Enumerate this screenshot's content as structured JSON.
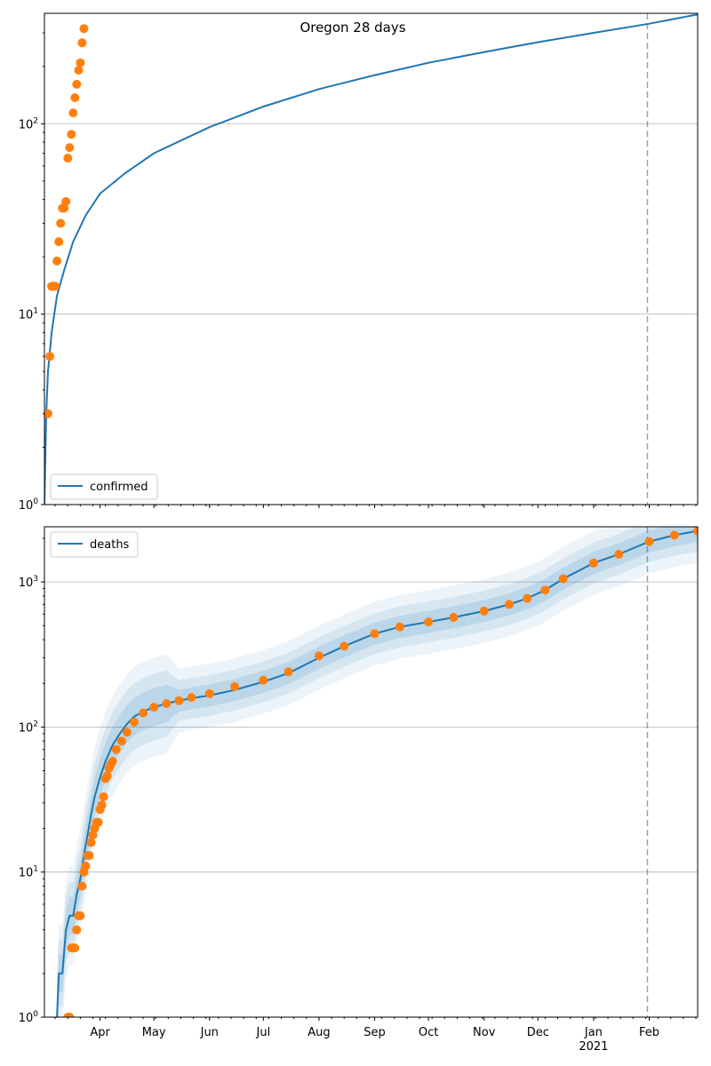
{
  "colors": {
    "model": "#1f77b4",
    "observed": "#ff7f0e",
    "grid": "#b0b0b0",
    "band": "#1f77b4"
  },
  "chart_data": [
    {
      "type": "line",
      "title": "Oregon 28 days",
      "yscale": "log",
      "ylim": [
        1,
        380
      ],
      "xlim": [
        "2020-03-01",
        "2021-02-28"
      ],
      "grid": "y-major",
      "legend": "bottom-left",
      "ytick_labels": [
        "10^0",
        "10^1",
        "10^2"
      ],
      "vline": "2021-01-31",
      "series": [
        {
          "name": "confirmed",
          "kind": "line",
          "x": [
            "2020-03-01",
            "2020-03-02",
            "2020-03-03",
            "2020-03-05",
            "2020-03-08",
            "2020-03-12",
            "2020-03-17",
            "2020-03-24",
            "2020-04-01",
            "2020-04-15",
            "2020-05-01",
            "2020-06-01",
            "2020-07-01",
            "2020-08-01",
            "2020-09-01",
            "2020-10-01",
            "2020-11-01",
            "2020-12-01",
            "2021-01-01",
            "2021-02-01",
            "2021-02-28"
          ],
          "y": [
            1,
            3,
            5,
            8,
            12.5,
            17,
            24,
            33,
            43,
            55,
            70,
            96,
            123,
            152,
            180,
            209,
            238,
            268,
            300,
            335,
            375
          ]
        },
        {
          "name": "",
          "kind": "scatter",
          "x": [
            "2020-03-03",
            "2020-03-04",
            "2020-03-05",
            "2020-03-06",
            "2020-03-07",
            "2020-03-08",
            "2020-03-09",
            "2020-03-10",
            "2020-03-11",
            "2020-03-12",
            "2020-03-13",
            "2020-03-14",
            "2020-03-15",
            "2020-03-16",
            "2020-03-17",
            "2020-03-18",
            "2020-03-19",
            "2020-03-20",
            "2020-03-21",
            "2020-03-22",
            "2020-03-23",
            "2020-03-24"
          ],
          "y": [
            3,
            6,
            14,
            14,
            14,
            19,
            24,
            30,
            36,
            36,
            39,
            66,
            75,
            88,
            114,
            137,
            161,
            191,
            209,
            266,
            316,
            null
          ]
        }
      ]
    },
    {
      "type": "line",
      "title": "",
      "yscale": "log",
      "ylim": [
        1,
        2400
      ],
      "xlim": [
        "2020-03-01",
        "2021-02-28"
      ],
      "grid": "y-major",
      "legend": "top-left",
      "ytick_labels": [
        "10^0",
        "10^1",
        "10^2",
        "10^3"
      ],
      "xtick_labels": [
        "Apr",
        "May",
        "Jun",
        "Jul",
        "Aug",
        "Sep",
        "Oct",
        "Nov",
        "Dec",
        "Jan",
        "Feb"
      ],
      "xtick_year": "2021",
      "vline": "2021-01-31",
      "series": [
        {
          "name": "deaths",
          "kind": "line",
          "x": [
            "2020-03-08",
            "2020-03-09",
            "2020-03-11",
            "2020-03-13",
            "2020-03-15",
            "2020-03-17",
            "2020-03-19",
            "2020-03-21",
            "2020-03-23",
            "2020-03-25",
            "2020-03-27",
            "2020-03-29",
            "2020-04-01",
            "2020-04-04",
            "2020-04-08",
            "2020-04-12",
            "2020-04-16",
            "2020-04-20",
            "2020-04-25",
            "2020-05-01",
            "2020-05-08",
            "2020-05-15",
            "2020-05-22",
            "2020-06-01",
            "2020-06-15",
            "2020-07-01",
            "2020-07-15",
            "2020-08-01",
            "2020-08-15",
            "2020-09-01",
            "2020-09-15",
            "2020-10-01",
            "2020-10-15",
            "2020-11-01",
            "2020-11-15",
            "2020-11-25",
            "2020-12-05",
            "2020-12-15",
            "2021-01-01",
            "2021-01-15",
            "2021-02-01",
            "2021-02-15",
            "2021-02-28"
          ],
          "y": [
            1,
            2,
            2,
            4,
            5,
            5,
            7,
            9,
            13,
            18,
            25,
            33,
            45,
            58,
            75,
            90,
            105,
            118,
            128,
            137,
            145,
            152,
            158,
            165,
            180,
            205,
            235,
            300,
            360,
            440,
            490,
            530,
            570,
            630,
            700,
            770,
            880,
            1050,
            1350,
            1550,
            1900,
            2100,
            2250
          ]
        },
        {
          "name": "",
          "kind": "scatter",
          "x": [
            "2020-03-14",
            "2020-03-15",
            "2020-03-16",
            "2020-03-17",
            "2020-03-18",
            "2020-03-19",
            "2020-03-20",
            "2020-03-21",
            "2020-03-22",
            "2020-03-23",
            "2020-03-24",
            "2020-03-25",
            "2020-03-26",
            "2020-03-27",
            "2020-03-28",
            "2020-03-29",
            "2020-03-30",
            "2020-03-31",
            "2020-04-01",
            "2020-04-02",
            "2020-04-03",
            "2020-04-04",
            "2020-04-05",
            "2020-04-06",
            "2020-04-07",
            "2020-04-08",
            "2020-04-10",
            "2020-04-13",
            "2020-04-16",
            "2020-04-20",
            "2020-04-25",
            "2020-05-01",
            "2020-05-08",
            "2020-05-15",
            "2020-05-22",
            "2020-06-01",
            "2020-06-15",
            "2020-07-01",
            "2020-07-15",
            "2020-08-01",
            "2020-08-15",
            "2020-09-01",
            "2020-09-15",
            "2020-10-01",
            "2020-10-15",
            "2020-11-01",
            "2020-11-15",
            "2020-11-25",
            "2020-12-05",
            "2020-12-15",
            "2021-01-01",
            "2021-01-15",
            "2021-02-01",
            "2021-02-15",
            "2021-02-28"
          ],
          "y": [
            1,
            1,
            3,
            3,
            3,
            4,
            5,
            5,
            8,
            10,
            11,
            13,
            13,
            16,
            18,
            20,
            22,
            22,
            27,
            29,
            33,
            44,
            46,
            52,
            55,
            58,
            70,
            80,
            92,
            108,
            125,
            137,
            145,
            152,
            160,
            170,
            190,
            210,
            240,
            310,
            360,
            440,
            490,
            530,
            570,
            630,
            700,
            770,
            880,
            1050,
            1350,
            1550,
            1900,
            2100,
            2250
          ]
        }
      ]
    }
  ]
}
